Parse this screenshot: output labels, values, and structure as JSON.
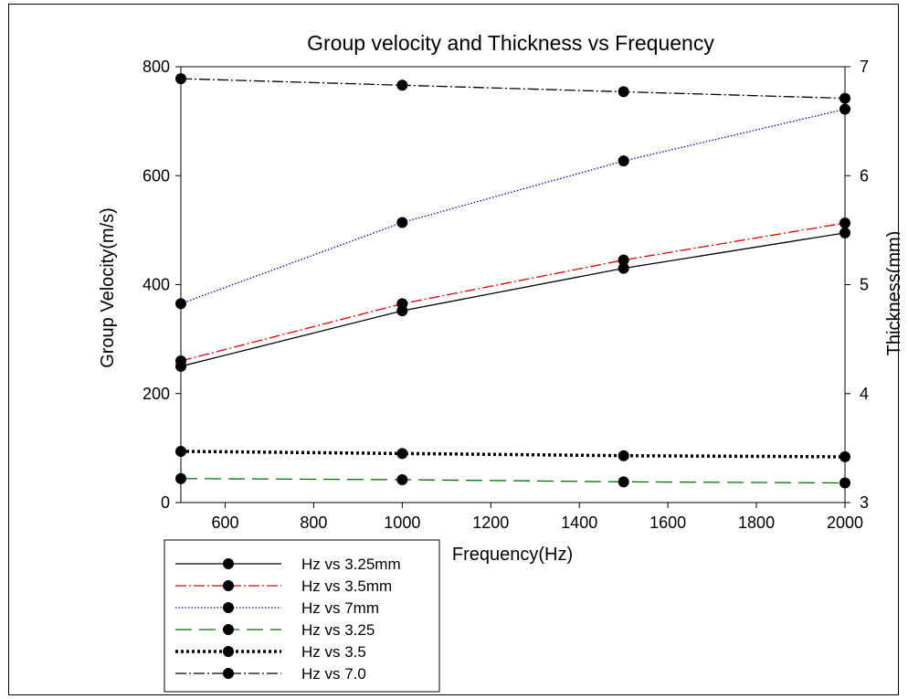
{
  "chart_data": {
    "type": "line",
    "title": "Group velocity and Thickness vs Frequency",
    "xlabel": "Frequency(Hz)",
    "ylabel": "Group Velocity(m/s)",
    "y2label": "Thickness(mm)",
    "xlim": [
      500,
      2000
    ],
    "ylim": [
      0,
      800
    ],
    "y2lim": [
      3,
      7
    ],
    "xticks": [
      "600",
      "800",
      "1000",
      "1200",
      "1400",
      "1600",
      "1800",
      "2000"
    ],
    "yticks": [
      "0",
      "200",
      "400",
      "600",
      "800"
    ],
    "y2ticks": [
      "3",
      "4",
      "5",
      "6",
      "7"
    ],
    "grid": false,
    "legend_position": "bottom-left",
    "x": [
      500,
      1000,
      1500,
      2000
    ],
    "series": [
      {
        "name": "Hz vs 3.25mm",
        "axis": "left",
        "values": [
          250,
          352,
          430,
          495
        ],
        "color": "#000000",
        "dash": "solid"
      },
      {
        "name": "Hz vs 3.5mm",
        "axis": "left",
        "values": [
          260,
          365,
          445,
          513
        ],
        "color": "#e00000",
        "dash": "dashdot"
      },
      {
        "name": "Hz vs 7mm",
        "axis": "left",
        "values": [
          365,
          514,
          627,
          722
        ],
        "color": "#0000e0",
        "dash": "dotted"
      },
      {
        "name": "Hz vs 3.25",
        "axis": "right",
        "values": [
          3.22,
          3.21,
          3.19,
          3.18
        ],
        "color": "#007000",
        "dash": "longdash"
      },
      {
        "name": "Hz vs 3.5",
        "axis": "right",
        "values": [
          3.47,
          3.45,
          3.43,
          3.42
        ],
        "color": "#000000",
        "dash": "thickdot"
      },
      {
        "name": "Hz vs 7.0",
        "axis": "right",
        "values": [
          6.89,
          6.83,
          6.77,
          6.71
        ],
        "color": "#000000",
        "dash": "dashdot"
      }
    ]
  }
}
